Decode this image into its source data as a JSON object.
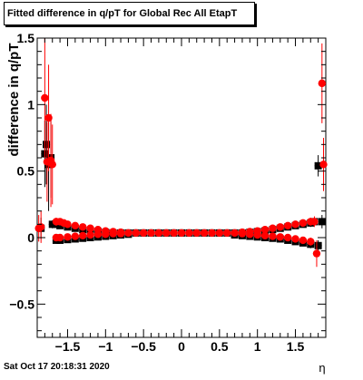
{
  "chart_data": {
    "type": "scatter",
    "title": "Fitted difference in q/pT for Global Rec All EtapT",
    "xlabel": "η",
    "ylabel": "difference in q/pT",
    "xlim": [
      -1.9,
      1.9
    ],
    "ylim": [
      -0.75,
      1.5
    ],
    "xticks": [
      -1.5,
      -1,
      -0.5,
      0,
      0.5,
      1,
      1.5
    ],
    "xtick_labels": [
      "−1.5",
      "−1",
      "−0.5",
      "0",
      "0.5",
      "1",
      "1.5"
    ],
    "yticks": [
      -0.5,
      0,
      0.5,
      1,
      1.5
    ],
    "ytick_labels": [
      "−0.5",
      "0",
      "0.5",
      "1",
      "1.5"
    ],
    "grid": false,
    "legend": "none",
    "timestamp": "Sat Oct 17 20:18:31 2020",
    "series": [
      {
        "color": "#000000",
        "marker": "square",
        "x": [
          -1.85,
          -1.8,
          -1.78,
          -1.75,
          -1.72,
          -1.7,
          -1.65,
          -1.6,
          -1.5,
          -1.4,
          -1.3,
          -1.2,
          -1.1,
          -1.0,
          -0.9,
          -0.8,
          -0.7,
          -0.6,
          -0.5,
          -0.4,
          -0.3,
          -0.2,
          -0.1,
          0.0,
          0.1,
          0.2,
          0.3,
          0.4,
          0.5,
          0.6,
          0.7,
          0.8,
          0.9,
          1.0,
          1.1,
          1.2,
          1.3,
          1.4,
          1.5,
          1.6,
          1.7,
          1.75,
          1.8,
          1.85,
          -1.65,
          -1.6,
          -1.5,
          -1.4,
          -1.3,
          -1.2,
          -1.1,
          -1.0,
          -0.9,
          -0.8,
          -0.7,
          0.7,
          0.8,
          0.9,
          1.0,
          1.1,
          1.2,
          1.3,
          1.4,
          1.5,
          1.6,
          1.7,
          1.8
        ],
        "y": [
          0.07,
          0.63,
          0.7,
          0.55,
          0.6,
          0.1,
          0.1,
          0.09,
          0.08,
          0.07,
          0.06,
          0.05,
          0.045,
          0.04,
          0.035,
          0.035,
          0.035,
          0.035,
          0.035,
          0.035,
          0.035,
          0.035,
          0.035,
          0.035,
          0.035,
          0.035,
          0.035,
          0.035,
          0.035,
          0.035,
          0.035,
          0.035,
          0.04,
          0.045,
          0.05,
          0.06,
          0.07,
          0.08,
          0.09,
          0.1,
          0.11,
          0.12,
          0.54,
          0.12,
          -0.02,
          -0.02,
          -0.015,
          -0.01,
          -0.005,
          0.0,
          0.005,
          0.01,
          0.015,
          0.02,
          0.025,
          0.02,
          0.015,
          0.01,
          0.005,
          0.0,
          -0.005,
          -0.01,
          -0.02,
          -0.03,
          -0.04,
          -0.05,
          -0.06
        ],
        "yerr": [
          0.08,
          0.25,
          0.3,
          0.35,
          0.3,
          0.03,
          0.02,
          0.02,
          0.01,
          0.01,
          0.01,
          0.01,
          0.01,
          0.01,
          0.01,
          0.01,
          0.01,
          0.01,
          0.01,
          0.01,
          0.01,
          0.01,
          0.01,
          0.01,
          0.01,
          0.01,
          0.01,
          0.01,
          0.01,
          0.01,
          0.01,
          0.01,
          0.01,
          0.01,
          0.01,
          0.01,
          0.01,
          0.01,
          0.02,
          0.02,
          0.03,
          0.03,
          0.08,
          0.05,
          0.01,
          0.01,
          0.01,
          0.01,
          0.01,
          0.01,
          0.01,
          0.01,
          0.01,
          0.01,
          0.01,
          0.01,
          0.01,
          0.01,
          0.01,
          0.01,
          0.01,
          0.01,
          0.01,
          0.02,
          0.02,
          0.03,
          0.04
        ]
      },
      {
        "color": "#ff0000",
        "marker": "circle",
        "x": [
          -1.88,
          -1.85,
          -1.8,
          -1.77,
          -1.75,
          -1.72,
          -1.7,
          -1.65,
          -1.6,
          -1.55,
          -1.5,
          -1.4,
          -1.3,
          -1.2,
          -1.1,
          -1.0,
          -0.9,
          -0.8,
          -0.7,
          -0.6,
          -0.5,
          -0.4,
          -0.3,
          -0.2,
          -0.1,
          0.0,
          0.1,
          0.2,
          0.3,
          0.4,
          0.5,
          0.6,
          0.7,
          0.8,
          0.9,
          1.0,
          1.1,
          1.2,
          1.3,
          1.4,
          1.5,
          1.6,
          1.7,
          1.75,
          1.78,
          1.85,
          1.87,
          -1.65,
          -1.6,
          -1.5,
          -1.4,
          -1.3,
          -1.2,
          -1.1,
          -1.0,
          -0.9,
          -0.8,
          0.8,
          0.9,
          1.0,
          1.1,
          1.2,
          1.3,
          1.4,
          1.5,
          1.6,
          1.7
        ],
        "y": [
          0.07,
          0.08,
          1.05,
          0.57,
          0.9,
          0.58,
          0.55,
          0.12,
          0.12,
          0.11,
          0.1,
          0.09,
          0.08,
          0.07,
          0.06,
          0.05,
          0.045,
          0.04,
          0.035,
          0.035,
          0.035,
          0.035,
          0.035,
          0.035,
          0.035,
          0.035,
          0.035,
          0.035,
          0.035,
          0.035,
          0.035,
          0.035,
          0.035,
          0.04,
          0.045,
          0.05,
          0.06,
          0.07,
          0.08,
          0.09,
          0.1,
          0.11,
          0.12,
          0.12,
          -0.12,
          1.16,
          0.55,
          0.0,
          0.0,
          0.005,
          0.01,
          0.015,
          0.02,
          0.025,
          0.025,
          0.03,
          0.03,
          0.03,
          0.025,
          0.02,
          0.015,
          0.01,
          0.005,
          0.0,
          -0.01,
          -0.02,
          -0.03
        ],
        "yerr": [
          0.1,
          0.12,
          0.45,
          0.3,
          0.4,
          0.35,
          0.3,
          0.03,
          0.02,
          0.02,
          0.02,
          0.01,
          0.01,
          0.01,
          0.01,
          0.01,
          0.01,
          0.01,
          0.01,
          0.01,
          0.01,
          0.01,
          0.01,
          0.01,
          0.01,
          0.01,
          0.01,
          0.01,
          0.01,
          0.01,
          0.01,
          0.01,
          0.01,
          0.01,
          0.01,
          0.01,
          0.01,
          0.01,
          0.01,
          0.01,
          0.02,
          0.02,
          0.03,
          0.04,
          0.1,
          0.3,
          0.2,
          0.01,
          0.01,
          0.01,
          0.01,
          0.01,
          0.01,
          0.01,
          0.01,
          0.01,
          0.01,
          0.01,
          0.01,
          0.01,
          0.01,
          0.01,
          0.01,
          0.01,
          0.02,
          0.02,
          0.03
        ]
      }
    ]
  }
}
